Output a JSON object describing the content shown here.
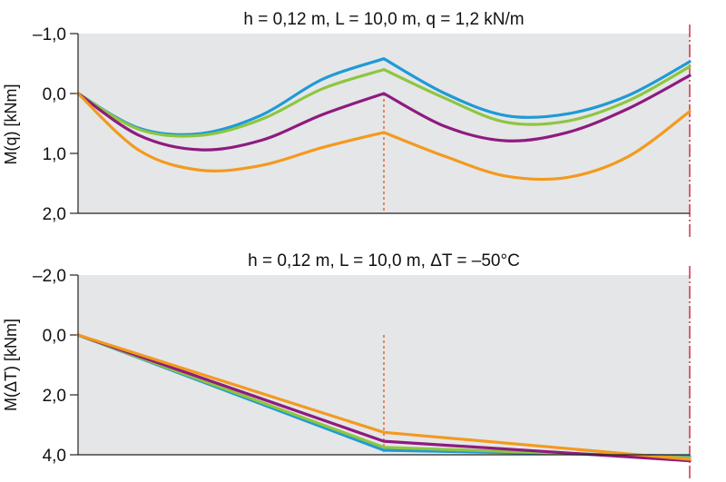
{
  "chart_data": [
    {
      "type": "line",
      "title": "h = 0,12 m, L = 10,0 m, q = 1,2 kN/m",
      "xlabel": "",
      "ylabel": "M(q) [kNm]",
      "ylim": [
        -1.0,
        2.0
      ],
      "y_inverted": true,
      "xlim": [
        0,
        20
      ],
      "grid": false,
      "yticks": [
        -1.0,
        0.0,
        1.0,
        2.0
      ],
      "ytick_labels": [
        "–1,0",
        "0,0",
        "1,0",
        "2,0"
      ],
      "support_marker_x": 10,
      "end_marker_x": 20,
      "x": [
        0,
        2,
        4,
        6,
        8,
        10,
        12,
        14,
        16,
        18,
        20
      ],
      "series": [
        {
          "name": "blue",
          "color": "#1f9ad6",
          "values": [
            0.0,
            0.58,
            0.67,
            0.36,
            -0.24,
            -0.58,
            0.0,
            0.37,
            0.34,
            0.03,
            -0.53
          ]
        },
        {
          "name": "green",
          "color": "#8dc63f",
          "values": [
            0.0,
            0.6,
            0.7,
            0.43,
            -0.08,
            -0.4,
            0.08,
            0.48,
            0.46,
            0.12,
            -0.45
          ]
        },
        {
          "name": "purple",
          "color": "#8e1b7f",
          "values": [
            0.0,
            0.7,
            0.94,
            0.78,
            0.35,
            0.0,
            0.55,
            0.79,
            0.65,
            0.25,
            -0.3
          ]
        },
        {
          "name": "orange",
          "color": "#f39a1e",
          "values": [
            0.0,
            0.95,
            1.28,
            1.2,
            0.9,
            0.65,
            1.05,
            1.38,
            1.4,
            1.05,
            0.3
          ]
        }
      ]
    },
    {
      "type": "line",
      "title": "h = 0,12 m, L = 10,0 m, ΔT = –50°C",
      "xlabel": "",
      "ylabel": "M(ΔT) [kNm]",
      "ylim": [
        -2.0,
        4.0
      ],
      "y_inverted": true,
      "xlim": [
        0,
        20
      ],
      "grid": false,
      "yticks": [
        -2.0,
        0.0,
        2.0,
        4.0
      ],
      "ytick_labels": [
        "–2,0",
        "0,0",
        "2,0",
        "4,0"
      ],
      "support_marker_x": 10,
      "end_marker_x": 20,
      "x": [
        0,
        10,
        20
      ],
      "series": [
        {
          "name": "blue",
          "color": "#1f9ad6",
          "values": [
            0.0,
            3.85,
            4.05
          ]
        },
        {
          "name": "green",
          "color": "#8dc63f",
          "values": [
            0.0,
            3.75,
            4.1
          ]
        },
        {
          "name": "purple",
          "color": "#8e1b7f",
          "values": [
            0.0,
            3.55,
            4.2
          ]
        },
        {
          "name": "orange",
          "color": "#f39a1e",
          "values": [
            0.0,
            3.25,
            4.15
          ]
        }
      ]
    }
  ],
  "colors": {
    "plot_background": "#e5e6e8",
    "axis": "#222222",
    "support_marker": "#e5531b",
    "end_marker": "#c8102e"
  }
}
